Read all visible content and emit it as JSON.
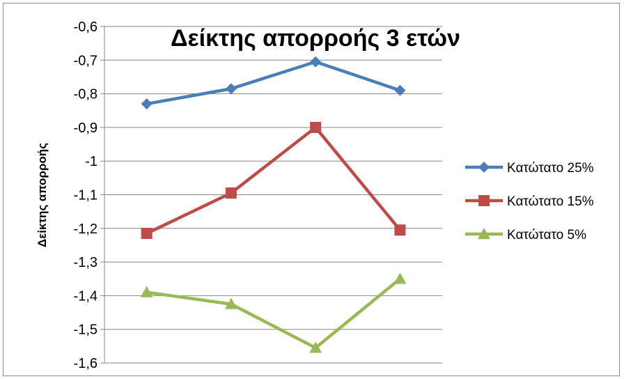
{
  "chart_data": {
    "type": "line",
    "title": "Δείκτης απορροής 3 ετών",
    "xlabel": "",
    "ylabel": "Δείκτης απορροής",
    "ylim": [
      -1.6,
      -0.6
    ],
    "yticks": [
      -0.6,
      -0.7,
      -0.8,
      -0.9,
      -1,
      -1.1,
      -1.2,
      -1.3,
      -1.4,
      -1.5,
      -1.6
    ],
    "ytick_labels": [
      "-0,6",
      "-0,7",
      "-0,8",
      "-0,9",
      "-1",
      "-1,1",
      "-1,2",
      "-1,3",
      "-1,4",
      "-1,5",
      "-1,6"
    ],
    "x": [
      1,
      2,
      3,
      4
    ],
    "grid": "horizontal",
    "legend_position": "right",
    "series": [
      {
        "name": "Κατώτατο 25%",
        "color": "#4a7ebb",
        "marker": "diamond",
        "values": [
          -0.83,
          -0.785,
          -0.705,
          -0.79
        ]
      },
      {
        "name": "Κατώτατο 15%",
        "color": "#be4b48",
        "marker": "square",
        "values": [
          -1.215,
          -1.095,
          -0.9,
          -1.205
        ]
      },
      {
        "name": "Κατώτατο 5%",
        "color": "#98b954",
        "marker": "triangle",
        "values": [
          -1.39,
          -1.425,
          -1.555,
          -1.35
        ]
      }
    ]
  }
}
